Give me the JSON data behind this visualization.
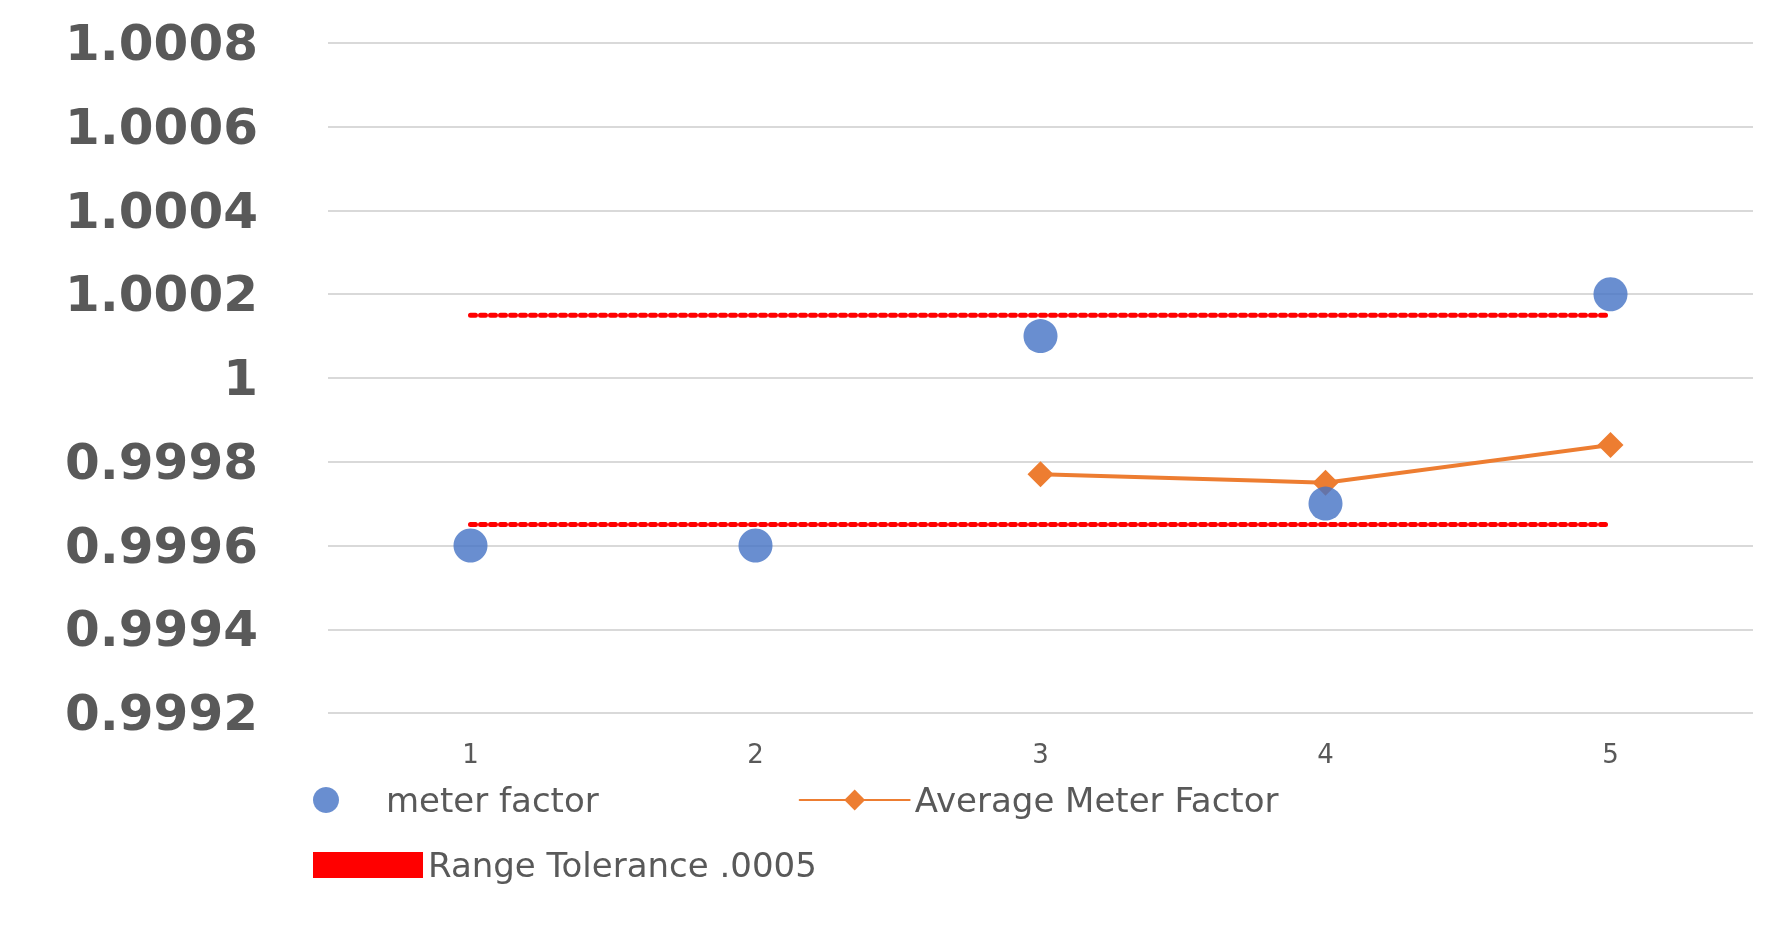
{
  "chart_data": {
    "type": "scatter",
    "categories": [
      "1",
      "2",
      "3",
      "4",
      "5"
    ],
    "series": [
      {
        "name": "meter factor",
        "marker": "circle",
        "color": "#4472c4",
        "values": [
          0.9996,
          0.9996,
          1.0001,
          0.9997,
          1.0002
        ]
      },
      {
        "name": "Average Meter Factor",
        "type": "line",
        "marker": "diamond",
        "line_style": "solid",
        "color": "#ed7d31",
        "values": [
          null,
          null,
          0.99977,
          0.99975,
          0.99984
        ]
      },
      {
        "name": "Range Tolerance .0005",
        "type": "line",
        "marker": "none",
        "line_style": "dotted",
        "color": "#ff0000",
        "values": [
          1.00015,
          1.00015,
          1.00015,
          1.00015,
          1.00015
        ]
      },
      {
        "type": "line",
        "marker": "none",
        "line_style": "dotted",
        "color": "#ff0000",
        "values": [
          0.99965,
          0.99965,
          0.99965,
          0.99965,
          0.99965
        ]
      }
    ],
    "ylim": [
      0.9992,
      1.0008
    ],
    "yticks": [
      0.9992,
      0.9994,
      0.9996,
      0.9998,
      1,
      1.0002,
      1.0004,
      1.0006,
      1.0008
    ],
    "grid": "y",
    "legend": "bottom"
  }
}
